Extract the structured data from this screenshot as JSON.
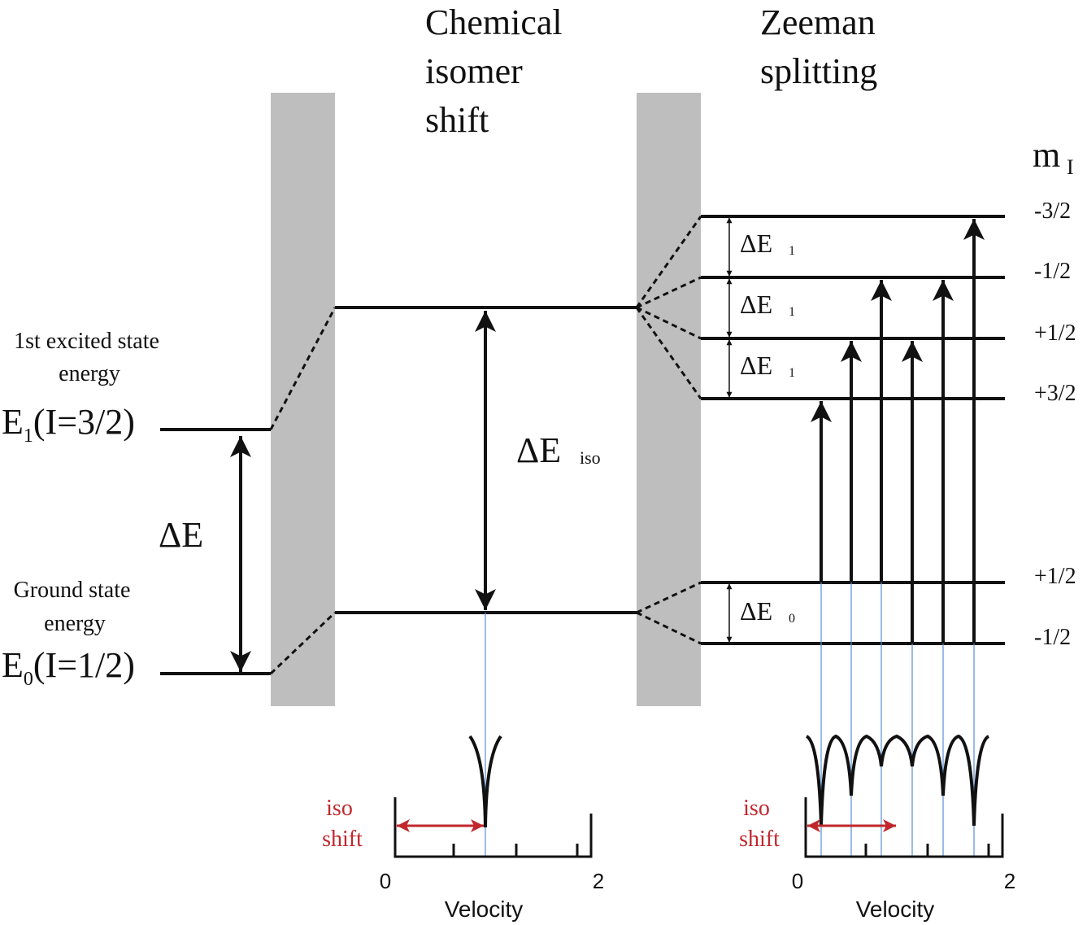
{
  "titles": {
    "isomer": [
      "Chemical",
      "isomer",
      "shift"
    ],
    "zeeman": [
      "Zeeman",
      "splitting"
    ]
  },
  "left": {
    "excited_desc": [
      "1st excited state",
      "energy"
    ],
    "excited_E": "E",
    "excited_sub": "1",
    "excited_rest": "(I=3/2)",
    "ground_desc": [
      "Ground state",
      "energy"
    ],
    "ground_E": "E",
    "ground_sub": "0",
    "ground_rest": "(I=1/2)",
    "delta_E": "ΔE"
  },
  "middle": {
    "delta_iso": "ΔE",
    "delta_iso_sub": "iso"
  },
  "zeeman": {
    "mI_label": "m",
    "mI_sub": "I",
    "excited_levels": [
      "-3/2",
      "-1/2",
      "+1/2",
      "+3/2"
    ],
    "ground_levels": [
      "+1/2",
      "-1/2"
    ],
    "gap_label": "ΔE",
    "gap_sub_excited": "1",
    "gap_sub_ground": "0"
  },
  "spectra": {
    "iso_label": [
      "iso",
      "shift"
    ],
    "axis_label": "Velocity",
    "axis_ticks": [
      "0",
      "2"
    ]
  },
  "colors": {
    "band": "#bebebe",
    "line": "#111111",
    "drop_line": "#5b8fd4",
    "iso_arrow": "#c0272d"
  }
}
